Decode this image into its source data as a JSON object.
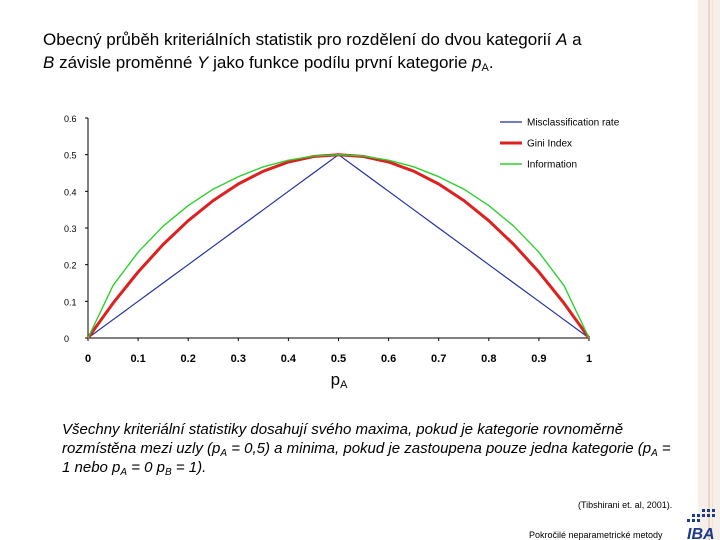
{
  "title": {
    "part1": "Obecný průběh kriteriálních statistik pro rozdělení do dvou kategorií ",
    "cat_a": "A",
    "part2": " a",
    "cat_b": "B",
    "part3": " závisle proměnné ",
    "var_y": "Y",
    "part4": " jako funkce podílu první kategorie ",
    "p": "p",
    "p_sub": "A",
    "part5": "."
  },
  "chart_data": {
    "type": "line",
    "xlabel": "p",
    "xlabel_sub": "A",
    "xlim": [
      0,
      1
    ],
    "ylim": [
      0,
      0.6
    ],
    "x_ticks": [
      "0",
      "0.1",
      "0.2",
      "0.3",
      "0.4",
      "0.5",
      "0.6",
      "0.7",
      "0.8",
      "0.9",
      "1"
    ],
    "y_ticks": [
      "0",
      "0.1",
      "0.2",
      "0.3",
      "0.4",
      "0.5",
      "0.6"
    ],
    "grid": false,
    "legend_position": "top-right",
    "x": [
      0,
      0.05,
      0.1,
      0.15,
      0.2,
      0.25,
      0.3,
      0.35,
      0.4,
      0.45,
      0.5,
      0.55,
      0.6,
      0.65,
      0.7,
      0.75,
      0.8,
      0.85,
      0.9,
      0.95,
      1
    ],
    "series": [
      {
        "name": "Misclassification rate",
        "color": "#1f2fa0",
        "width": 1.2,
        "values": [
          0,
          0.05,
          0.1,
          0.15,
          0.2,
          0.25,
          0.3,
          0.35,
          0.4,
          0.45,
          0.5,
          0.45,
          0.4,
          0.35,
          0.3,
          0.25,
          0.2,
          0.15,
          0.1,
          0.05,
          0
        ]
      },
      {
        "name": "Gini Index",
        "color": "#dd2020",
        "width": 3,
        "values": [
          0,
          0.095,
          0.18,
          0.255,
          0.32,
          0.375,
          0.42,
          0.455,
          0.48,
          0.495,
          0.5,
          0.495,
          0.48,
          0.455,
          0.42,
          0.375,
          0.32,
          0.255,
          0.18,
          0.095,
          0
        ]
      },
      {
        "name": "Information",
        "color": "#2ed12e",
        "width": 1.4,
        "values": [
          0,
          0.143,
          0.234,
          0.305,
          0.361,
          0.406,
          0.44,
          0.467,
          0.485,
          0.496,
          0.5,
          0.496,
          0.485,
          0.467,
          0.44,
          0.406,
          0.361,
          0.305,
          0.234,
          0.143,
          0
        ]
      }
    ]
  },
  "summary": {
    "t1": "Všechny kriteriální statistiky dosahují svého maxima, pokud je kategorie rovnoměrně rozmístěna mezi uzly (p",
    "s1": "A",
    "t2": " = 0,5) a minima, pokud je zastoupena pouze jedna kategorie (p",
    "s2": "A",
    "t3": " = 1 nebo p",
    "s3": "A",
    "t4": " = 0  p",
    "s4": "B",
    "t5": " = 1)."
  },
  "citation": "(Tibshirani et. al, 2001).",
  "footer": "Pokročilé neparametrické metody",
  "logo_text": "IBA",
  "colors": {
    "accent_side": "#f6efe9",
    "logo_blue": "#1a3a8a"
  }
}
